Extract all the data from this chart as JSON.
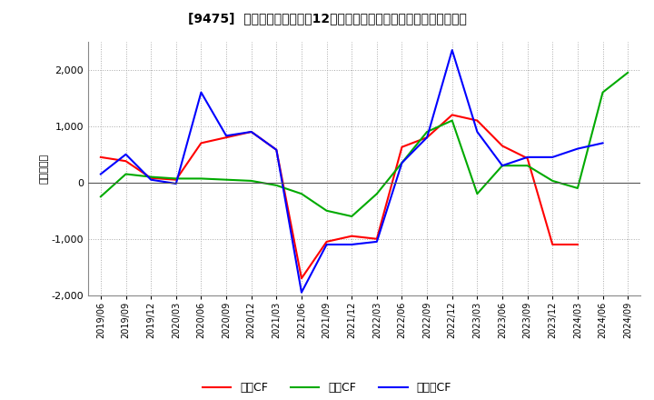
{
  "title": "[9475]  キャッシュフローの12か月移動合計の対前年同期増減額の推移",
  "ylabel": "（百万円）",
  "ylim": [
    -2000,
    2500
  ],
  "yticks": [
    -2000,
    -1000,
    0,
    1000,
    2000
  ],
  "background_color": "#ffffff",
  "grid_color": "#aaaaaa",
  "dates": [
    "2019/06",
    "2019/09",
    "2019/12",
    "2020/03",
    "2020/06",
    "2020/09",
    "2020/12",
    "2021/03",
    "2021/06",
    "2021/09",
    "2021/12",
    "2022/03",
    "2022/06",
    "2022/09",
    "2022/12",
    "2023/03",
    "2023/06",
    "2023/09",
    "2023/12",
    "2024/03",
    "2024/06",
    "2024/09"
  ],
  "operating_cf": [
    450,
    380,
    80,
    50,
    700,
    800,
    900,
    580,
    -1700,
    -1050,
    -950,
    -1000,
    630,
    800,
    1200,
    1100,
    650,
    430,
    -1100,
    -1100,
    null,
    null
  ],
  "investing_cf": [
    -250,
    150,
    100,
    70,
    70,
    50,
    30,
    -50,
    -200,
    -500,
    -600,
    -200,
    350,
    900,
    1100,
    -200,
    300,
    300,
    30,
    -100,
    1600,
    1950
  ],
  "free_cf": [
    150,
    500,
    50,
    -20,
    1600,
    830,
    900,
    580,
    -1950,
    -1100,
    -1100,
    -1050,
    350,
    800,
    2350,
    900,
    300,
    450,
    450,
    600,
    700,
    null
  ],
  "op_color": "#ff0000",
  "inv_color": "#00aa00",
  "free_color": "#0000ff",
  "legend_labels": [
    "営業CF",
    "投資CF",
    "フリーCF"
  ]
}
